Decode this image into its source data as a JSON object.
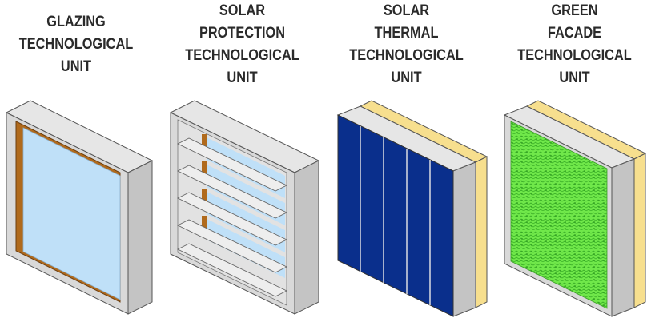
{
  "units": [
    {
      "label": "GLAZING\nTECHNOLOGICAL\nUNIT",
      "glass_color": "#bfe0f8",
      "frame_color": "#b06a1c"
    },
    {
      "label": "SOLAR\nPROTECTION\nTECHNOLOGICAL\nUNIT",
      "slat_count": 5
    },
    {
      "label": "SOLAR\nTHERMAL\nTECHNOLOGICAL\nUNIT",
      "panel_color": "#0a2f8c",
      "insulation_color": "#f7df8e",
      "panel_count": 5
    },
    {
      "label": "GREEN\nFACADE\nTECHNOLOGICAL\nUNIT",
      "green_color": "#66e23f",
      "insulation_color": "#f7df8e"
    }
  ],
  "colors": {
    "box_front": "#d9d9d9",
    "box_side": "#c4c4c4",
    "box_top": "#e6e6e6",
    "outline": "#555555"
  }
}
